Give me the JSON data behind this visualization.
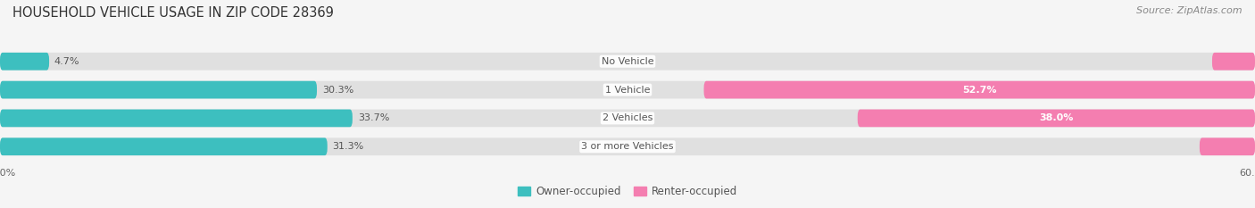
{
  "title": "HOUSEHOLD VEHICLE USAGE IN ZIP CODE 28369",
  "source": "Source: ZipAtlas.com",
  "categories": [
    "No Vehicle",
    "1 Vehicle",
    "2 Vehicles",
    "3 or more Vehicles"
  ],
  "owner_values": [
    4.7,
    30.3,
    33.7,
    31.3
  ],
  "renter_values": [
    4.1,
    52.7,
    38.0,
    5.3
  ],
  "owner_color": "#3DBFBF",
  "renter_color": "#F47EB0",
  "bar_height": 0.62,
  "xlim": [
    -60,
    60
  ],
  "background_color": "#f5f5f5",
  "bar_bg_color": "#e8e8e8",
  "title_fontsize": 10.5,
  "source_fontsize": 8,
  "label_fontsize": 8,
  "category_fontsize": 8,
  "legend_fontsize": 8.5,
  "axis_label_fontsize": 8
}
